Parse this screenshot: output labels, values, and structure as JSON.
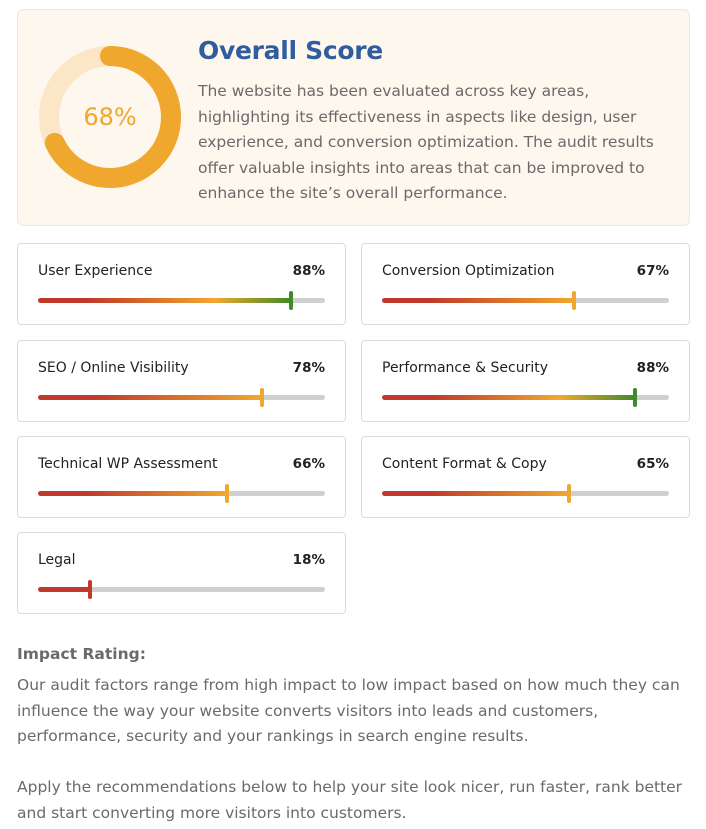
{
  "overall": {
    "score": 68,
    "score_label": "68%",
    "title": "Overall Score",
    "description": "The website has been evaluated across key areas, highlighting its effectiveness in aspects like design, user experience, and conversion optimization. The audit results offer valuable insights into areas that can be improved to enhance the site’s overall performance."
  },
  "categories": [
    {
      "label": "User Experience",
      "percent_label": "88%",
      "value": 88
    },
    {
      "label": "Conversion Optimization",
      "percent_label": "67%",
      "value": 67
    },
    {
      "label": "SEO / Online Visibility",
      "percent_label": "78%",
      "value": 78
    },
    {
      "label": "Performance & Security",
      "percent_label": "88%",
      "value": 88
    },
    {
      "label": "Technical WP Assessment",
      "percent_label": "66%",
      "value": 66
    },
    {
      "label": "Content Format & Copy",
      "percent_label": "65%",
      "value": 65
    },
    {
      "label": "Legal",
      "percent_label": "18%",
      "value": 18
    }
  ],
  "impact": {
    "title": "Impact Rating:",
    "text": "Our audit factors range from high impact to low impact based on how much they can influence the way your website converts visitors into leads and customers, performance, security and your rankings in search engine results.",
    "apply": "Apply the recommendations below to help your site look nicer, run faster, rank better and start converting more visitors into customers."
  },
  "colors": {
    "accent_orange": "#f0a72e",
    "donut_track": "#fbe6c6",
    "title_blue": "#2f5d9e",
    "bar_red": "#c0392b",
    "bar_orange": "#f0a72e",
    "bar_green": "#3f8a2c",
    "track_gray": "#cfcfcf"
  }
}
